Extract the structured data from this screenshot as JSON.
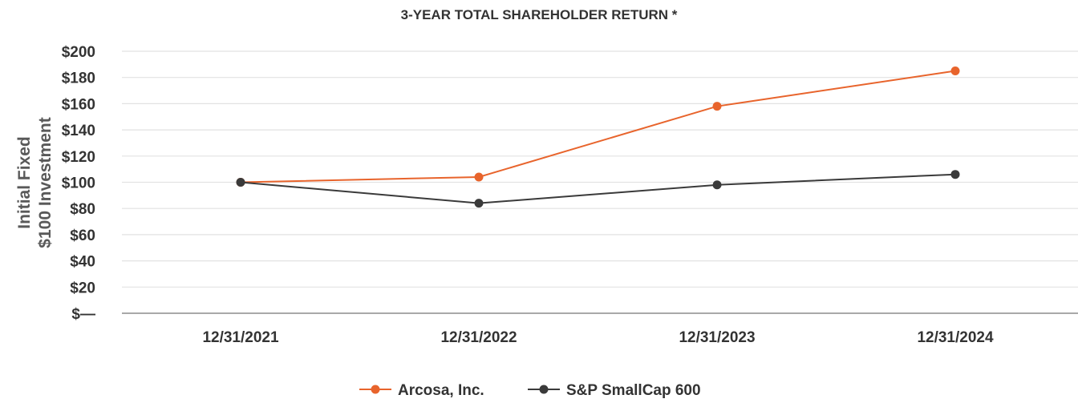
{
  "chart_data": {
    "type": "line",
    "title": "3-YEAR TOTAL SHAREHOLDER RETURN *",
    "ylabel_lines": [
      "Initial Fixed",
      "$100 Investment"
    ],
    "xlabel": "",
    "categories": [
      "12/31/2021",
      "12/31/2022",
      "12/31/2023",
      "12/31/2024"
    ],
    "y_ticks": [
      0,
      20,
      40,
      60,
      80,
      100,
      120,
      140,
      160,
      180,
      200
    ],
    "y_tick_labels": [
      "$—",
      "$20",
      "$40",
      "$60",
      "$80",
      "$100",
      "$120",
      "$140",
      "$160",
      "$180",
      "$200"
    ],
    "ylim": [
      0,
      200
    ],
    "grid": true,
    "legend_position": "bottom-center",
    "series": [
      {
        "name": "Arcosa, Inc.",
        "color": "#e8642c",
        "values": [
          100,
          104,
          158,
          185
        ]
      },
      {
        "name": "S&P SmallCap 600",
        "color": "#3a3a3a",
        "values": [
          100,
          84,
          98,
          106
        ]
      }
    ]
  }
}
